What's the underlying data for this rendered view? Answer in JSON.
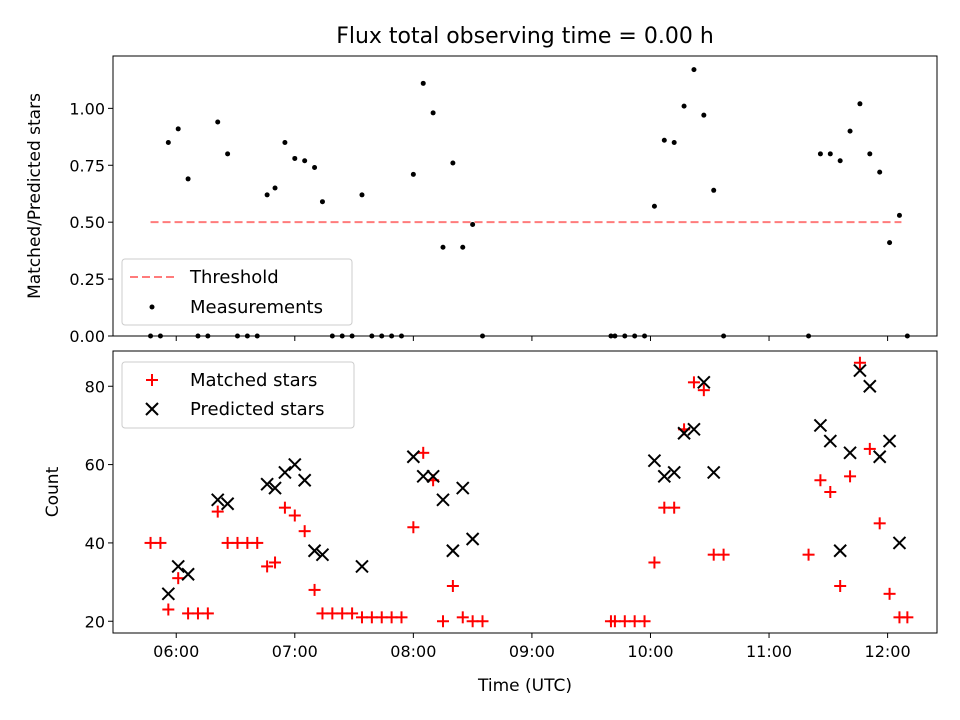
{
  "chart_data": [
    {
      "type": "scatter",
      "title": "Flux total observing time = 0.00 h",
      "xlabel": "",
      "ylabel": "Matched/Predicted stars",
      "xlim": [
        "05:28",
        "12:25"
      ],
      "ylim": [
        0.0,
        1.23
      ],
      "yticks": [
        0.0,
        0.25,
        0.5,
        0.75,
        1.0
      ],
      "ytick_labels": [
        "0.00",
        "0.25",
        "0.50",
        "0.75",
        "1.00"
      ],
      "legend_position": "lower-left",
      "grid": false,
      "threshold": {
        "name": "Threshold",
        "value": 0.5,
        "x": [
          "05:47",
          "12:07"
        ],
        "color": "#ff7b7b"
      },
      "series": [
        {
          "name": "Measurements",
          "marker": "dot",
          "color": "#000000",
          "points": [
            [
              "05:47",
              0.0
            ],
            [
              "05:52",
              0.0
            ],
            [
              "05:56",
              0.85
            ],
            [
              "06:01",
              0.91
            ],
            [
              "06:06",
              0.69
            ],
            [
              "06:11",
              0.0
            ],
            [
              "06:16",
              0.0
            ],
            [
              "06:21",
              0.94
            ],
            [
              "06:26",
              0.8
            ],
            [
              "06:31",
              0.0
            ],
            [
              "06:36",
              0.0
            ],
            [
              "06:41",
              0.0
            ],
            [
              "06:46",
              0.62
            ],
            [
              "06:50",
              0.65
            ],
            [
              "06:55",
              0.85
            ],
            [
              "07:00",
              0.78
            ],
            [
              "07:05",
              0.77
            ],
            [
              "07:10",
              0.74
            ],
            [
              "07:14",
              0.59
            ],
            [
              "07:19",
              0.0
            ],
            [
              "07:24",
              0.0
            ],
            [
              "07:29",
              0.0
            ],
            [
              "07:34",
              0.62
            ],
            [
              "07:39",
              0.0
            ],
            [
              "07:44",
              0.0
            ],
            [
              "07:49",
              0.0
            ],
            [
              "07:54",
              0.0
            ],
            [
              "08:00",
              0.71
            ],
            [
              "08:05",
              1.11
            ],
            [
              "08:10",
              0.98
            ],
            [
              "08:15",
              0.39
            ],
            [
              "08:20",
              0.76
            ],
            [
              "08:25",
              0.39
            ],
            [
              "08:30",
              0.49
            ],
            [
              "08:35",
              0.0
            ],
            [
              "09:40",
              0.0
            ],
            [
              "09:42",
              0.0
            ],
            [
              "09:47",
              0.0
            ],
            [
              "09:52",
              0.0
            ],
            [
              "09:57",
              0.0
            ],
            [
              "10:02",
              0.57
            ],
            [
              "10:07",
              0.86
            ],
            [
              "10:12",
              0.85
            ],
            [
              "10:17",
              1.01
            ],
            [
              "10:22",
              1.17
            ],
            [
              "10:27",
              0.97
            ],
            [
              "10:32",
              0.64
            ],
            [
              "10:37",
              0.0
            ],
            [
              "11:20",
              0.0
            ],
            [
              "11:26",
              0.8
            ],
            [
              "11:31",
              0.8
            ],
            [
              "11:36",
              0.77
            ],
            [
              "11:41",
              0.9
            ],
            [
              "11:46",
              1.02
            ],
            [
              "11:51",
              0.8
            ],
            [
              "11:56",
              0.72
            ],
            [
              "12:01",
              0.41
            ],
            [
              "12:06",
              0.53
            ],
            [
              "12:10",
              0.0
            ]
          ]
        }
      ]
    },
    {
      "type": "scatter",
      "title": "",
      "xlabel": "Time (UTC)",
      "ylabel": "Count",
      "xlim": [
        "05:28",
        "12:25"
      ],
      "ylim": [
        17,
        89
      ],
      "yticks": [
        20,
        40,
        60,
        80
      ],
      "xticks": [
        "06:00",
        "07:00",
        "08:00",
        "09:00",
        "10:00",
        "11:00",
        "12:00"
      ],
      "legend_position": "upper-left",
      "grid": false,
      "series": [
        {
          "name": "Matched stars",
          "marker": "plus",
          "color": "#ff0000",
          "points": [
            [
              "05:47",
              40
            ],
            [
              "05:52",
              40
            ],
            [
              "05:56",
              23
            ],
            [
              "06:01",
              31
            ],
            [
              "06:06",
              22
            ],
            [
              "06:11",
              22
            ],
            [
              "06:16",
              22
            ],
            [
              "06:21",
              48
            ],
            [
              "06:26",
              40
            ],
            [
              "06:31",
              40
            ],
            [
              "06:36",
              40
            ],
            [
              "06:41",
              40
            ],
            [
              "06:46",
              34
            ],
            [
              "06:50",
              35
            ],
            [
              "06:55",
              49
            ],
            [
              "07:00",
              47
            ],
            [
              "07:05",
              43
            ],
            [
              "07:10",
              28
            ],
            [
              "07:14",
              22
            ],
            [
              "07:19",
              22
            ],
            [
              "07:24",
              22
            ],
            [
              "07:29",
              22
            ],
            [
              "07:34",
              21
            ],
            [
              "07:39",
              21
            ],
            [
              "07:44",
              21
            ],
            [
              "07:49",
              21
            ],
            [
              "07:54",
              21
            ],
            [
              "08:00",
              44
            ],
            [
              "08:05",
              63
            ],
            [
              "08:10",
              56
            ],
            [
              "08:15",
              20
            ],
            [
              "08:20",
              29
            ],
            [
              "08:25",
              21
            ],
            [
              "08:30",
              20
            ],
            [
              "08:35",
              20
            ],
            [
              "09:40",
              20
            ],
            [
              "09:42",
              20
            ],
            [
              "09:47",
              20
            ],
            [
              "09:52",
              20
            ],
            [
              "09:57",
              20
            ],
            [
              "10:02",
              35
            ],
            [
              "10:07",
              49
            ],
            [
              "10:12",
              49
            ],
            [
              "10:17",
              69
            ],
            [
              "10:22",
              81
            ],
            [
              "10:27",
              79
            ],
            [
              "10:32",
              37
            ],
            [
              "10:37",
              37
            ],
            [
              "11:20",
              37
            ],
            [
              "11:26",
              56
            ],
            [
              "11:31",
              53
            ],
            [
              "11:36",
              29
            ],
            [
              "11:41",
              57
            ],
            [
              "11:46",
              86
            ],
            [
              "11:51",
              64
            ],
            [
              "11:56",
              45
            ],
            [
              "12:01",
              27
            ],
            [
              "12:06",
              21
            ],
            [
              "12:10",
              21
            ]
          ]
        },
        {
          "name": "Predicted stars",
          "marker": "x",
          "color": "#000000",
          "points": [
            [
              "05:56",
              27
            ],
            [
              "06:01",
              34
            ],
            [
              "06:06",
              32
            ],
            [
              "06:21",
              51
            ],
            [
              "06:26",
              50
            ],
            [
              "06:46",
              55
            ],
            [
              "06:50",
              54
            ],
            [
              "06:55",
              58
            ],
            [
              "07:00",
              60
            ],
            [
              "07:05",
              56
            ],
            [
              "07:10",
              38
            ],
            [
              "07:14",
              37
            ],
            [
              "07:34",
              34
            ],
            [
              "08:00",
              62
            ],
            [
              "08:05",
              57
            ],
            [
              "08:10",
              57
            ],
            [
              "08:15",
              51
            ],
            [
              "08:20",
              38
            ],
            [
              "08:25",
              54
            ],
            [
              "08:30",
              41
            ],
            [
              "10:02",
              61
            ],
            [
              "10:07",
              57
            ],
            [
              "10:12",
              58
            ],
            [
              "10:17",
              68
            ],
            [
              "10:22",
              69
            ],
            [
              "10:27",
              81
            ],
            [
              "10:32",
              58
            ],
            [
              "11:26",
              70
            ],
            [
              "11:31",
              66
            ],
            [
              "11:36",
              38
            ],
            [
              "11:41",
              63
            ],
            [
              "11:46",
              84
            ],
            [
              "11:51",
              80
            ],
            [
              "11:56",
              62
            ],
            [
              "12:01",
              66
            ],
            [
              "12:06",
              40
            ]
          ]
        }
      ]
    }
  ]
}
